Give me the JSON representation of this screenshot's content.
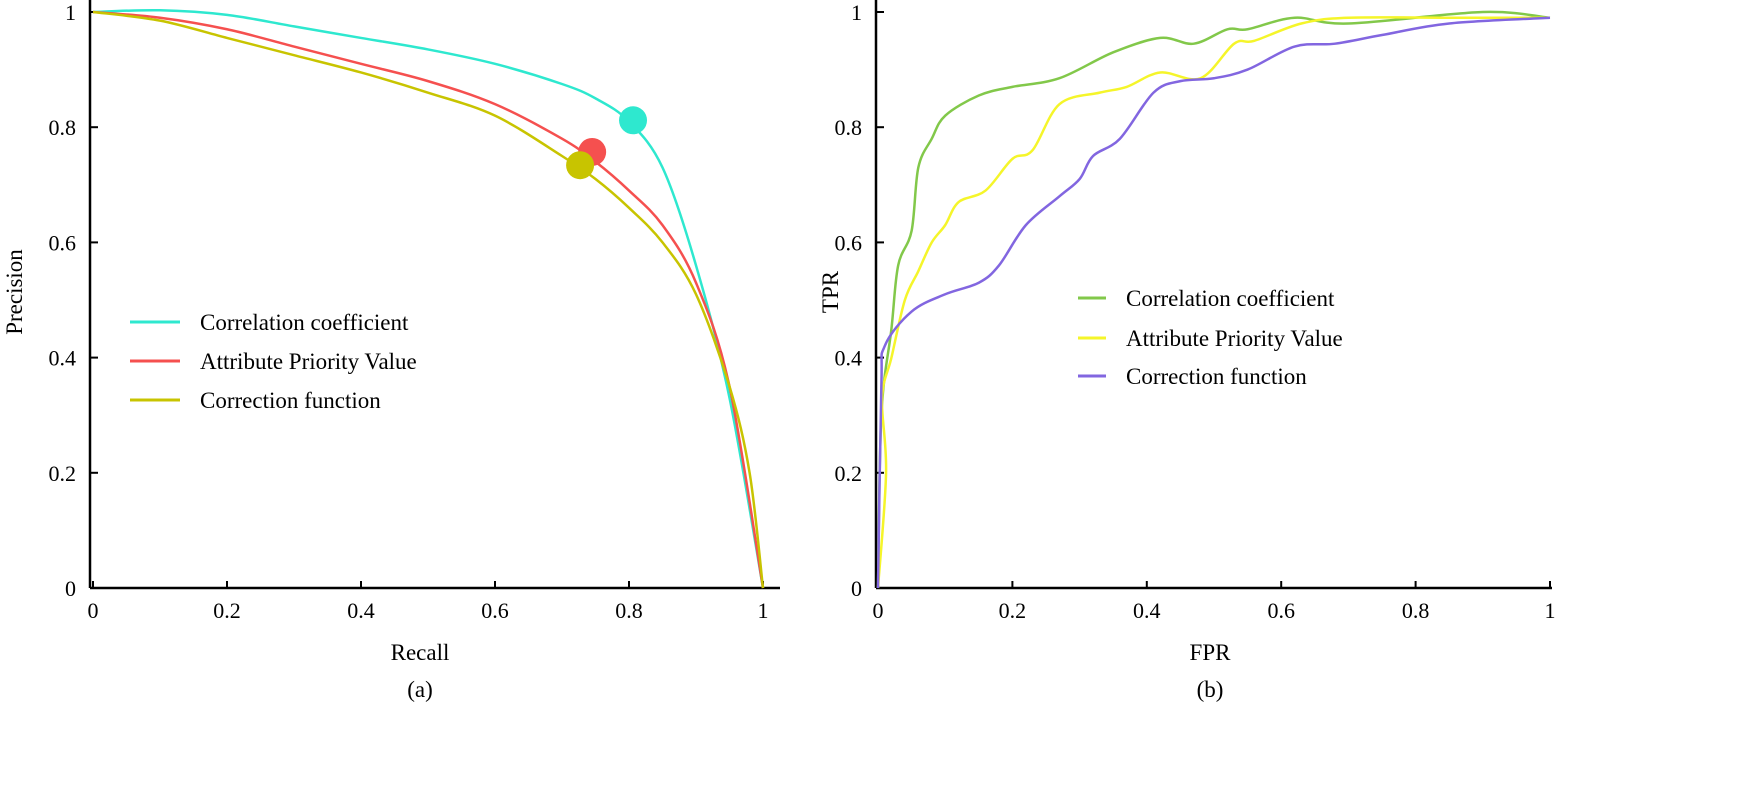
{
  "chart_data": [
    {
      "type": "line",
      "panel_label": "(a)",
      "xlabel": "Recall",
      "ylabel": "Precision",
      "xlim": [
        0,
        1
      ],
      "ylim": [
        0,
        1
      ],
      "xticks": [
        "0",
        "0.2",
        "0.4",
        "0.6",
        "0.8",
        "1"
      ],
      "yticks": [
        "0",
        "0.2",
        "0.4",
        "0.6",
        "0.8",
        "1"
      ],
      "grid": false,
      "legend_placement": "center-left",
      "series": [
        {
          "name": "Correlation coefficient",
          "color": "#2ee8cf",
          "x": [
            0,
            0.1,
            0.2,
            0.3,
            0.4,
            0.5,
            0.6,
            0.7,
            0.75,
            0.8,
            0.85,
            0.9,
            0.95,
            1
          ],
          "y": [
            1.0,
            1.003,
            0.995,
            0.975,
            0.955,
            0.935,
            0.91,
            0.875,
            0.85,
            0.81,
            0.73,
            0.56,
            0.33,
            0
          ],
          "marker": [
            0.806,
            0.812
          ]
        },
        {
          "name": "Attribute Priority Value",
          "color": "#f5504f",
          "x": [
            0,
            0.1,
            0.2,
            0.3,
            0.4,
            0.5,
            0.6,
            0.7,
            0.75,
            0.8,
            0.85,
            0.9,
            0.95,
            1
          ],
          "y": [
            1.0,
            0.99,
            0.97,
            0.94,
            0.91,
            0.88,
            0.84,
            0.78,
            0.74,
            0.69,
            0.63,
            0.53,
            0.35,
            0
          ],
          "marker": [
            0.745,
            0.757
          ]
        },
        {
          "name": "Correction function",
          "color": "#c8c400",
          "x": [
            0,
            0.1,
            0.2,
            0.3,
            0.4,
            0.5,
            0.6,
            0.7,
            0.75,
            0.8,
            0.85,
            0.9,
            0.95,
            0.98,
            1
          ],
          "y": [
            1.0,
            0.985,
            0.955,
            0.925,
            0.895,
            0.86,
            0.82,
            0.75,
            0.71,
            0.66,
            0.6,
            0.51,
            0.35,
            0.2,
            0
          ],
          "marker": [
            0.727,
            0.734
          ]
        }
      ]
    },
    {
      "type": "line",
      "panel_label": "(b)",
      "xlabel": "FPR",
      "ylabel": "TPR",
      "xlim": [
        0,
        1
      ],
      "ylim": [
        0,
        1
      ],
      "xticks": [
        "0",
        "0.2",
        "0.4",
        "0.6",
        "0.8",
        "1"
      ],
      "yticks": [
        "0",
        "0.2",
        "0.4",
        "0.6",
        "0.8",
        "1"
      ],
      "grid": false,
      "legend_placement": "center-right",
      "series": [
        {
          "name": "Correlation coefficient",
          "color": "#82c84a",
          "x": [
            0,
            0.005,
            0.02,
            0.03,
            0.05,
            0.06,
            0.08,
            0.1,
            0.15,
            0.2,
            0.27,
            0.35,
            0.42,
            0.47,
            0.52,
            0.55,
            0.62,
            0.7,
            0.9,
            1
          ],
          "y": [
            0,
            0.3,
            0.45,
            0.56,
            0.62,
            0.73,
            0.78,
            0.82,
            0.855,
            0.87,
            0.885,
            0.93,
            0.955,
            0.945,
            0.97,
            0.97,
            0.99,
            0.98,
            1.0,
            0.99
          ]
        },
        {
          "name": "Attribute Priority Value",
          "color": "#f5f52a",
          "x": [
            0,
            0.012,
            0.006,
            0.02,
            0.04,
            0.06,
            0.08,
            0.1,
            0.12,
            0.16,
            0.2,
            0.23,
            0.27,
            0.33,
            0.37,
            0.42,
            0.48,
            0.53,
            0.56,
            0.63,
            0.7,
            0.85,
            1
          ],
          "y": [
            0,
            0.2,
            0.33,
            0.4,
            0.5,
            0.55,
            0.6,
            0.63,
            0.67,
            0.69,
            0.745,
            0.76,
            0.84,
            0.86,
            0.87,
            0.895,
            0.885,
            0.945,
            0.95,
            0.98,
            0.99,
            0.99,
            0.99
          ]
        },
        {
          "name": "Correction function",
          "color": "#8266e0",
          "x": [
            0,
            0.005,
            0.01,
            0.05,
            0.1,
            0.15,
            0.18,
            0.22,
            0.27,
            0.3,
            0.32,
            0.36,
            0.41,
            0.45,
            0.5,
            0.55,
            0.62,
            0.68,
            0.75,
            0.85,
            1
          ],
          "y": [
            0,
            0.35,
            0.42,
            0.48,
            0.51,
            0.53,
            0.56,
            0.63,
            0.68,
            0.71,
            0.75,
            0.78,
            0.86,
            0.88,
            0.885,
            0.9,
            0.94,
            0.945,
            0.96,
            0.98,
            0.99
          ]
        }
      ]
    }
  ]
}
